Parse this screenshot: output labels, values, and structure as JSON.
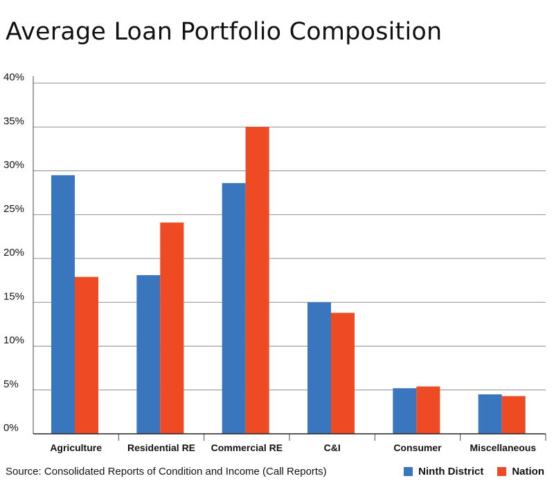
{
  "chart_data": {
    "type": "bar",
    "title": "Average Loan Portfolio Composition",
    "categories": [
      "Agriculture",
      "Residential RE",
      "Commercial RE",
      "C&I",
      "Consumer",
      "Miscellaneous"
    ],
    "series": [
      {
        "name": "Ninth District",
        "color": "#3a76bd",
        "values": [
          29.5,
          18.1,
          28.6,
          15.0,
          5.2,
          4.5
        ]
      },
      {
        "name": "Nation",
        "color": "#ee4a23",
        "values": [
          17.9,
          24.1,
          35.0,
          13.8,
          5.4,
          4.3
        ]
      }
    ],
    "yticks": [
      "0%",
      "5%",
      "10%",
      "15%",
      "20%",
      "25%",
      "30%",
      "35%",
      "40%"
    ],
    "ylim": [
      0,
      40
    ],
    "grid": true,
    "legend_position": "bottom-right",
    "source": "Source: Consolidated Reports of Condition and Income (Call Reports)"
  }
}
